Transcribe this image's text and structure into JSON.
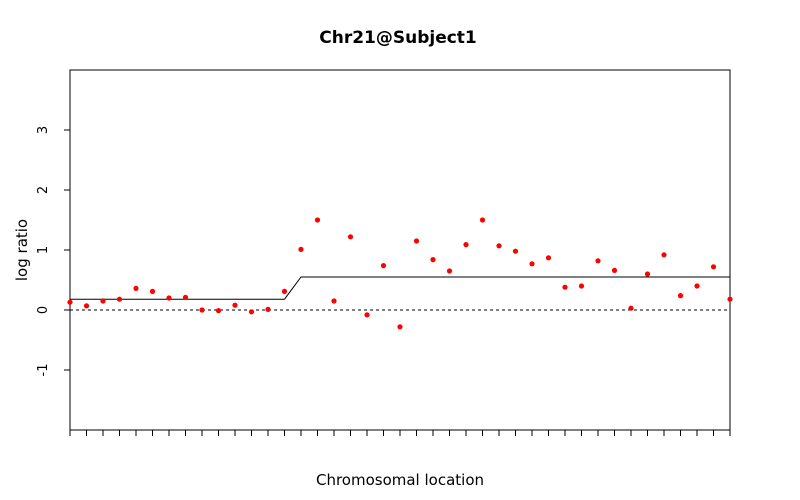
{
  "chart_data": {
    "type": "scatter",
    "title": "Chr21@Subject1",
    "xlabel": "Chromosomal location",
    "ylabel": "log ratio",
    "ylim": [
      -2,
      4
    ],
    "yticks": [
      -1,
      0,
      1,
      2,
      3
    ],
    "ytick_labels": [
      "-1",
      "0",
      "1",
      "2",
      "3"
    ],
    "xlim": [
      1,
      41
    ],
    "grid": false,
    "reference_line_y": 0,
    "point_color": "#ff0000",
    "x": [
      1,
      2,
      3,
      4,
      5,
      6,
      7,
      8,
      9,
      10,
      11,
      12,
      13,
      14,
      15,
      16,
      17,
      18,
      19,
      20,
      21,
      22,
      23,
      24,
      25,
      26,
      27,
      28,
      29,
      30,
      31,
      32,
      33,
      34,
      35,
      36,
      37,
      38,
      39,
      40,
      41
    ],
    "values": [
      0.13,
      0.07,
      0.15,
      0.18,
      0.36,
      0.31,
      0.2,
      0.21,
      0.0,
      -0.01,
      0.08,
      -0.03,
      0.01,
      0.31,
      1.01,
      1.5,
      0.15,
      1.22,
      -0.08,
      0.74,
      -0.28,
      1.15,
      0.84,
      0.65,
      1.09,
      1.5,
      1.07,
      0.98,
      0.77,
      0.87,
      0.38,
      0.4,
      0.82,
      0.66,
      0.03,
      0.6,
      0.92,
      0.24,
      0.4,
      0.72,
      0.18
    ],
    "segments": [
      {
        "x_start": 1,
        "x_end": 14,
        "value": 0.18
      },
      {
        "x_start": 15,
        "x_end": 41,
        "value": 0.55
      }
    ]
  }
}
